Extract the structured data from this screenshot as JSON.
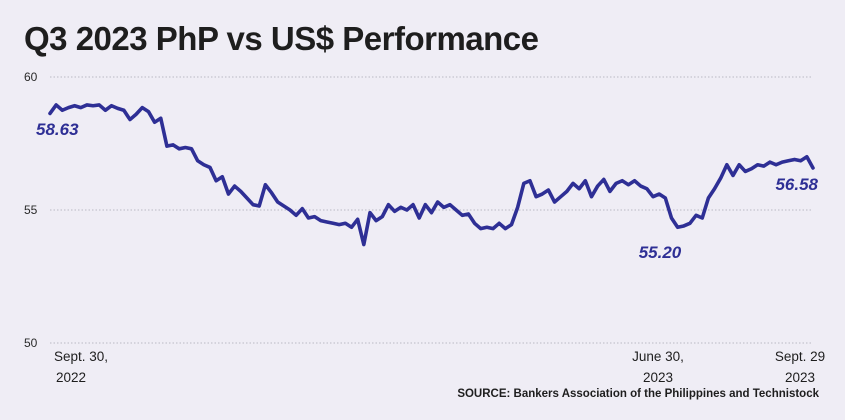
{
  "title": "Q3 2023 PhP vs US$ Performance",
  "source": "SOURCE: Bankers Association of the Philippines and Technistock",
  "colors": {
    "line": "#2e2f95",
    "background": "#efedf5",
    "text": "#1e1e1e"
  },
  "chart_data": {
    "type": "line",
    "title": "Q3 2023 PhP vs US$ Performance",
    "xlabel": "",
    "ylabel": "",
    "ylim": [
      50,
      60
    ],
    "yticks": [
      "60",
      "55",
      "50"
    ],
    "grid": true,
    "legend": "none",
    "x_tick_labels": [
      {
        "line1": "Sept. 30,",
        "line2": "2022"
      },
      {
        "line1": "June 30,",
        "line2": "2023"
      },
      {
        "line1": "Sept. 29",
        "line2": "2023"
      }
    ],
    "annotations": [
      "58.63",
      "55.20",
      "56.58"
    ],
    "series": [
      {
        "values": [
          58.63,
          58.95,
          58.75,
          58.85,
          58.92,
          58.85,
          58.95,
          58.92,
          58.95,
          58.75,
          58.92,
          58.82,
          58.75,
          58.4,
          58.6,
          58.85,
          58.7,
          58.3,
          58.45,
          57.4,
          57.45,
          57.3,
          57.35,
          57.3,
          56.85,
          56.7,
          56.6,
          56.1,
          56.25,
          55.6,
          55.9,
          55.7,
          55.45,
          55.2,
          55.15,
          55.95,
          55.65,
          55.3,
          55.15,
          55.0,
          54.8,
          55.05,
          54.7,
          54.75,
          54.6,
          54.55,
          54.5,
          54.45,
          54.5,
          54.35,
          54.65,
          53.7,
          54.9,
          54.6,
          54.75,
          55.2,
          54.95,
          55.1,
          55.0,
          55.2,
          54.7,
          55.2,
          54.9,
          55.3,
          55.1,
          55.2,
          55.0,
          54.8,
          54.85,
          54.5,
          54.3,
          54.35,
          54.3,
          54.5,
          54.3,
          54.45,
          55.1,
          56.0,
          56.1,
          55.5,
          55.6,
          55.75,
          55.3,
          55.5,
          55.7,
          56.0,
          55.8,
          56.1,
          55.5,
          55.9,
          56.15,
          55.7,
          56.0,
          56.1,
          55.95,
          56.1,
          55.9,
          55.8,
          55.5,
          55.6,
          55.45,
          54.7,
          54.35,
          54.4,
          54.5,
          54.8,
          54.7,
          55.45,
          55.8,
          56.2,
          56.7,
          56.3,
          56.7,
          56.45,
          56.55,
          56.7,
          56.65,
          56.8,
          56.7,
          56.8,
          56.85,
          56.9,
          56.85,
          57.0,
          56.58
        ]
      }
    ]
  }
}
